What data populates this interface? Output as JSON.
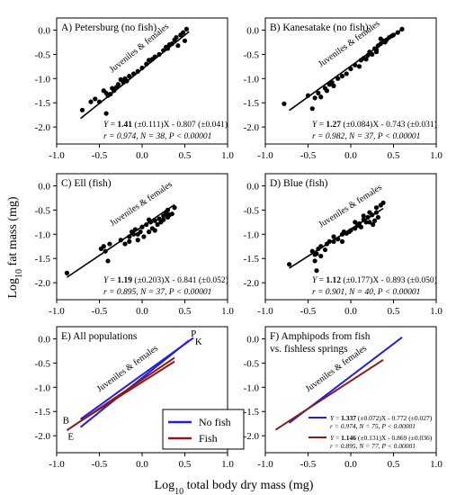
{
  "figure": {
    "ylabel_prefix": "Log",
    "ylabel_sub": "10",
    "ylabel_rest": " fat mass (mg)",
    "xlabel_prefix": "Log",
    "xlabel_sub": "10",
    "xlabel_rest": " total body dry mass (mg)"
  },
  "chart_data": [
    {
      "id": "A",
      "type": "scatter",
      "title": "A) Petersburg (no fish)",
      "xlim": [
        -1.0,
        1.0
      ],
      "ylim": [
        -2.35,
        0.25
      ],
      "xticks": [
        "-1.0",
        "-0.5",
        "0.0",
        "0.5",
        "1.0"
      ],
      "yticks": [
        "0.0",
        "-0.5",
        "-1.0",
        "-1.5",
        "-2.0"
      ],
      "group_label": "Juveniles & females",
      "points": [
        [
          -0.7,
          -1.65
        ],
        [
          -0.6,
          -1.48
        ],
        [
          -0.55,
          -1.42
        ],
        [
          -0.5,
          -1.48
        ],
        [
          -0.45,
          -1.25
        ],
        [
          -0.42,
          -1.3
        ],
        [
          -0.4,
          -1.35
        ],
        [
          -0.37,
          -1.32
        ],
        [
          -0.35,
          -1.2
        ],
        [
          -0.33,
          -1.25
        ],
        [
          -0.3,
          -1.18
        ],
        [
          -0.28,
          -1.12
        ],
        [
          -0.25,
          -1.02
        ],
        [
          -0.22,
          -1.08
        ],
        [
          -0.2,
          -1.0
        ],
        [
          -0.18,
          -1.05
        ],
        [
          -0.15,
          -0.95
        ],
        [
          -0.1,
          -0.9
        ],
        [
          -0.05,
          -0.85
        ],
        [
          0.0,
          -0.78
        ],
        [
          0.05,
          -0.7
        ],
        [
          0.08,
          -0.62
        ],
        [
          0.12,
          -0.6
        ],
        [
          0.15,
          -0.55
        ],
        [
          0.2,
          -0.5
        ],
        [
          0.25,
          -0.42
        ],
        [
          0.28,
          -0.35
        ],
        [
          0.3,
          -0.38
        ],
        [
          0.32,
          -0.3
        ],
        [
          0.35,
          -0.28
        ],
        [
          0.38,
          -0.2
        ],
        [
          0.4,
          -0.15
        ],
        [
          0.42,
          -0.32
        ],
        [
          0.45,
          -0.1
        ],
        [
          0.48,
          -0.05
        ],
        [
          0.5,
          -0.22
        ],
        [
          0.52,
          0.02
        ],
        [
          -0.42,
          -1.72
        ]
      ],
      "fit": {
        "slope": 1.41,
        "intercept": -0.807,
        "x_range": [
          -0.72,
          0.55
        ]
      },
      "eq_lines": [
        "Y = 1.41 (±0.111)X - 0.807 (±0.041)",
        "r = 0.974, N = 38, P < 0.00001"
      ]
    },
    {
      "id": "B",
      "type": "scatter",
      "title": "B) Kanesatake (no fish)",
      "xlim": [
        -1.0,
        1.0
      ],
      "ylim": [
        -2.35,
        0.25
      ],
      "xticks": [
        "-1.0",
        "-0.5",
        "0.0",
        "0.5",
        "1.0"
      ],
      "yticks": [
        "0.0",
        "-0.5",
        "-1.0",
        "-1.5",
        "-2.0"
      ],
      "group_label": "Juveniles & females",
      "points": [
        [
          -0.78,
          -1.52
        ],
        [
          -0.5,
          -1.35
        ],
        [
          -0.45,
          -1.62
        ],
        [
          -0.42,
          -1.4
        ],
        [
          -0.38,
          -1.3
        ],
        [
          -0.35,
          -1.38
        ],
        [
          -0.3,
          -1.2
        ],
        [
          -0.25,
          -1.12
        ],
        [
          -0.22,
          -1.08
        ],
        [
          -0.2,
          -1.15
        ],
        [
          -0.15,
          -1.0
        ],
        [
          -0.1,
          -0.95
        ],
        [
          -0.05,
          -0.9
        ],
        [
          0.0,
          -0.8
        ],
        [
          0.05,
          -0.72
        ],
        [
          0.1,
          -0.75
        ],
        [
          0.12,
          -0.62
        ],
        [
          0.15,
          -0.58
        ],
        [
          0.18,
          -0.6
        ],
        [
          0.2,
          -0.52
        ],
        [
          0.22,
          -0.45
        ],
        [
          0.25,
          -0.5
        ],
        [
          0.28,
          -0.38
        ],
        [
          0.3,
          -0.4
        ],
        [
          0.32,
          -0.32
        ],
        [
          0.35,
          -0.28
        ],
        [
          0.38,
          -0.22
        ],
        [
          0.4,
          -0.25
        ],
        [
          0.42,
          -0.2
        ],
        [
          0.45,
          -0.15
        ],
        [
          0.48,
          -0.12
        ],
        [
          0.5,
          -0.1
        ],
        [
          0.55,
          -0.05
        ],
        [
          0.6,
          0.02
        ],
        [
          0.35,
          -0.18
        ],
        [
          0.3,
          -0.45
        ],
        [
          -0.28,
          -1.25
        ]
      ],
      "fit": {
        "slope": 1.27,
        "intercept": -0.743,
        "x_range": [
          -0.72,
          0.6
        ]
      },
      "eq_lines": [
        "Y = 1.27 (±0.084)X - 0.743 (±0.031)",
        "r = 0.982, N = 37, P < 0.00001"
      ]
    },
    {
      "id": "C",
      "type": "scatter",
      "title": "C) Ell (fish)",
      "xlim": [
        -1.0,
        1.0
      ],
      "ylim": [
        -2.35,
        0.25
      ],
      "xticks": [
        "-1.0",
        "-0.5",
        "0.0",
        "0.5",
        "1.0"
      ],
      "yticks": [
        "0.0",
        "-0.5",
        "-1.0",
        "-1.5",
        "-2.0"
      ],
      "group_label": "Juveniles & females",
      "points": [
        [
          -0.88,
          -1.8
        ],
        [
          -0.48,
          -1.3
        ],
        [
          -0.45,
          -1.25
        ],
        [
          -0.43,
          -1.35
        ],
        [
          -0.4,
          -1.55
        ],
        [
          -0.38,
          -1.2
        ],
        [
          -0.25,
          -1.12
        ],
        [
          -0.2,
          -1.2
        ],
        [
          -0.15,
          -1.05
        ],
        [
          -0.12,
          -0.95
        ],
        [
          -0.1,
          -1.0
        ],
        [
          -0.08,
          -0.9
        ],
        [
          -0.05,
          -1.12
        ],
        [
          -0.02,
          -0.95
        ],
        [
          0.0,
          -0.85
        ],
        [
          0.02,
          -1.05
        ],
        [
          0.05,
          -0.8
        ],
        [
          0.08,
          -0.95
        ],
        [
          0.1,
          -0.75
        ],
        [
          0.12,
          -0.88
        ],
        [
          0.15,
          -0.72
        ],
        [
          0.18,
          -0.8
        ],
        [
          0.2,
          -0.68
        ],
        [
          0.22,
          -0.75
        ],
        [
          0.25,
          -0.62
        ],
        [
          0.25,
          -0.7
        ],
        [
          0.28,
          -0.55
        ],
        [
          0.3,
          -0.65
        ],
        [
          0.3,
          -0.5
        ],
        [
          0.32,
          -0.6
        ],
        [
          0.35,
          -0.58
        ],
        [
          0.38,
          -0.45
        ],
        [
          -0.05,
          -1.0
        ],
        [
          0.08,
          -0.7
        ],
        [
          0.15,
          -0.92
        ],
        [
          -0.15,
          -1.15
        ],
        [
          0.3,
          -0.6
        ]
      ],
      "fit": {
        "slope": 1.19,
        "intercept": -0.841,
        "x_range": [
          -0.88,
          0.38
        ]
      },
      "eq_lines": [
        "Y = 1.19 (±0.203)X - 0.841 (±0.052)",
        "r = 0.895, N = 37, P < 0.00001"
      ]
    },
    {
      "id": "D",
      "type": "scatter",
      "title": "D) Blue (fish)",
      "xlim": [
        -1.0,
        1.0
      ],
      "ylim": [
        -2.35,
        0.25
      ],
      "xticks": [
        "-1.0",
        "-0.5",
        "0.0",
        "0.5",
        "1.0"
      ],
      "yticks": [
        "0.0",
        "-0.5",
        "-1.0",
        "-1.5",
        "-2.0"
      ],
      "group_label": "Juveniles & females",
      "points": [
        [
          -0.72,
          -1.62
        ],
        [
          -0.45,
          -1.35
        ],
        [
          -0.42,
          -1.55
        ],
        [
          -0.4,
          -1.75
        ],
        [
          -0.4,
          -1.4
        ],
        [
          -0.38,
          -1.3
        ],
        [
          -0.35,
          -1.25
        ],
        [
          -0.35,
          -1.45
        ],
        [
          -0.3,
          -1.32
        ],
        [
          -0.28,
          -1.2
        ],
        [
          -0.25,
          -1.15
        ],
        [
          -0.2,
          -1.05
        ],
        [
          -0.15,
          -1.1
        ],
        [
          -0.1,
          -1.0
        ],
        [
          -0.08,
          -0.95
        ],
        [
          -0.05,
          -0.98
        ],
        [
          0.0,
          -0.92
        ],
        [
          0.05,
          -0.88
        ],
        [
          0.08,
          -0.82
        ],
        [
          0.1,
          -0.78
        ],
        [
          0.12,
          -0.85
        ],
        [
          0.15,
          -0.7
        ],
        [
          0.18,
          -0.75
        ],
        [
          0.2,
          -0.65
        ],
        [
          0.22,
          -0.55
        ],
        [
          0.25,
          -0.6
        ],
        [
          0.28,
          -0.72
        ],
        [
          0.3,
          -0.55
        ],
        [
          0.3,
          -0.45
        ],
        [
          0.32,
          -0.65
        ],
        [
          0.35,
          -0.4
        ],
        [
          0.38,
          -0.35
        ],
        [
          0.22,
          -0.75
        ],
        [
          0.15,
          -0.62
        ],
        [
          -0.02,
          -0.95
        ],
        [
          -0.2,
          -1.15
        ],
        [
          -0.42,
          -1.42
        ],
        [
          -0.1,
          -1.15
        ],
        [
          0.26,
          -0.8
        ],
        [
          0.05,
          -0.75
        ]
      ],
      "fit": {
        "slope": 1.12,
        "intercept": -0.893,
        "x_range": [
          -0.72,
          0.38
        ]
      },
      "eq_lines": [
        "Y = 1.12 (±0.177)X - 0.893 (±0.050)",
        "r = 0.901, N = 40, P < 0.00001"
      ]
    },
    {
      "id": "E",
      "type": "line",
      "title": "E) All populations",
      "xlim": [
        -1.0,
        1.0
      ],
      "ylim": [
        -2.35,
        0.25
      ],
      "xticks": [
        "-1.0",
        "-0.5",
        "0.0",
        "0.5",
        "1.0"
      ],
      "yticks": [
        "0.0",
        "-0.5",
        "-1.0",
        "-1.5",
        "-2.0"
      ],
      "group_label": "Juveniles & females",
      "series": [
        {
          "name": "P",
          "group": "No fish",
          "color": "#1f1fe0",
          "x": [
            -0.72,
            0.55
          ],
          "y": [
            -1.822,
            -0.032
          ]
        },
        {
          "name": "K",
          "group": "No fish",
          "color": "#1f1fe0",
          "x": [
            -0.72,
            0.6
          ],
          "y": [
            -1.657,
            0.019
          ]
        },
        {
          "name": "E",
          "group": "Fish",
          "color": "#8b1a1a",
          "x": [
            -0.88,
            0.38
          ],
          "y": [
            -1.888,
            -0.389
          ]
        },
        {
          "name": "B",
          "group": "Fish",
          "color": "#8b1a1a",
          "x": [
            -0.72,
            0.38
          ],
          "y": [
            -1.699,
            -0.467
          ]
        }
      ],
      "legend": [
        {
          "label": "No fish",
          "color": "#1f1fe0"
        },
        {
          "label": "Fish",
          "color": "#8b1a1a"
        }
      ]
    },
    {
      "id": "F",
      "type": "line",
      "title_lines": [
        "F) Amphipods from fish",
        "vs. fishless springs"
      ],
      "xlim": [
        -1.0,
        1.0
      ],
      "ylim": [
        -2.35,
        0.25
      ],
      "xticks": [
        "-1.0",
        "-0.5",
        "0.0",
        "0.5",
        "1.0"
      ],
      "yticks": [
        "0.0",
        "-0.5",
        "-1.0",
        "-1.5",
        "-2.0"
      ],
      "group_label": "Juveniles & females",
      "series": [
        {
          "group": "No fish",
          "color": "#1f1fe0",
          "x": [
            -0.72,
            0.6
          ],
          "y": [
            -1.735,
            0.03
          ]
        },
        {
          "group": "Fish",
          "color": "#8b1a1a",
          "x": [
            -0.88,
            0.38
          ],
          "y": [
            -1.877,
            -0.434
          ]
        }
      ],
      "legend": [
        {
          "color": "#1f1fe0",
          "eq": "Y = 1.337 (±0.072)X - 0.772 (±0.027)",
          "stats": "r = 0.974, N = 75, P < 0.00001"
        },
        {
          "color": "#8b1a1a",
          "eq": "Y = 1.146 (±0.131)X - 0.869 (±0.036)",
          "stats": "r = 0.895, N = 77, P < 0.00001"
        }
      ]
    }
  ]
}
